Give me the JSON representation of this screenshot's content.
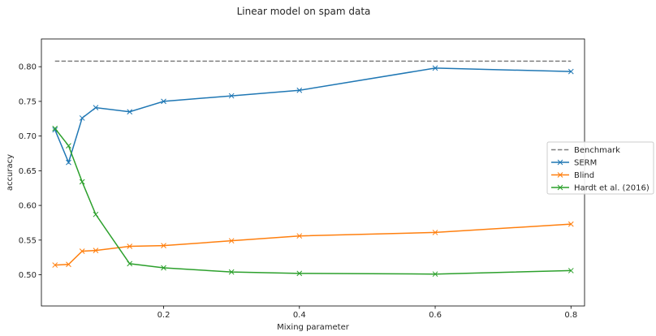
{
  "chart_data": {
    "type": "line",
    "title": "Linear model on spam data",
    "xlabel": "Mixing parameter",
    "ylabel": "accuracy",
    "xlim": [
      0.02,
      0.82
    ],
    "ylim": [
      0.455,
      0.84
    ],
    "x_ticks": [
      0.2,
      0.4,
      0.6,
      0.8
    ],
    "x_tick_labels": [
      "0.2",
      "0.4",
      "0.6",
      "0.8"
    ],
    "y_ticks": [
      0.5,
      0.55,
      0.6,
      0.65,
      0.7,
      0.75,
      0.8
    ],
    "y_tick_labels": [
      "0.50",
      "0.55",
      "0.60",
      "0.65",
      "0.70",
      "0.75",
      "0.80"
    ],
    "grid": false,
    "legend_position": "right, outside plot",
    "benchmark": {
      "name": "Benchmark",
      "x": [
        0.04,
        0.8
      ],
      "y": [
        0.808,
        0.808
      ],
      "color": "#7f7f7f",
      "style": "dashed"
    },
    "series": [
      {
        "name": "SERM",
        "color": "#1f77b4",
        "marker": "x",
        "x": [
          0.04,
          0.06,
          0.08,
          0.1,
          0.15,
          0.2,
          0.3,
          0.4,
          0.6,
          0.8
        ],
        "values": [
          0.709,
          0.662,
          0.726,
          0.741,
          0.735,
          0.75,
          0.758,
          0.766,
          0.798,
          0.793
        ]
      },
      {
        "name": "Blind",
        "color": "#ff7f0e",
        "marker": "x",
        "x": [
          0.04,
          0.06,
          0.08,
          0.1,
          0.15,
          0.2,
          0.3,
          0.4,
          0.6,
          0.8
        ],
        "values": [
          0.514,
          0.515,
          0.534,
          0.535,
          0.541,
          0.542,
          0.549,
          0.556,
          0.561,
          0.573
        ]
      },
      {
        "name": "Hardt et al. (2016)",
        "color": "#2ca02c",
        "marker": "x",
        "x": [
          0.04,
          0.06,
          0.08,
          0.1,
          0.15,
          0.2,
          0.3,
          0.4,
          0.6,
          0.8
        ],
        "values": [
          0.711,
          0.686,
          0.634,
          0.587,
          0.516,
          0.51,
          0.504,
          0.502,
          0.501,
          0.506
        ]
      }
    ]
  }
}
